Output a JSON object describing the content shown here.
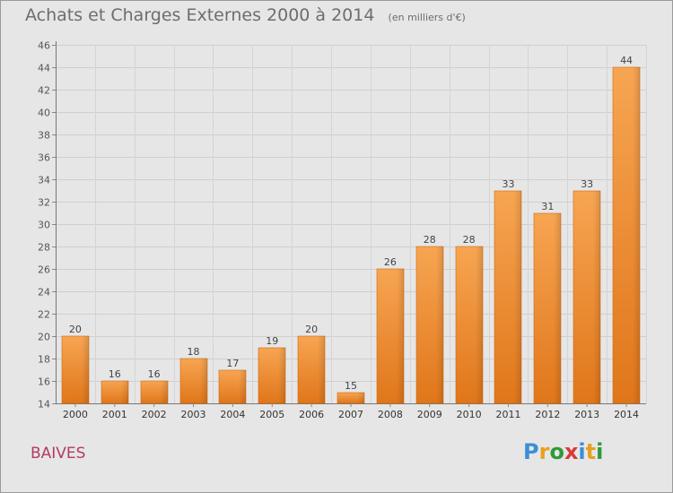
{
  "header": {
    "title": "Achats et Charges Externes 2000 à 2014",
    "subtitle": "(en milliers d'€)"
  },
  "footer": {
    "place": "BAIVES",
    "logo_letters": [
      "P",
      "r",
      "o",
      "x",
      "i",
      "t",
      "i"
    ],
    "logo_colors": [
      "#3a8fd8",
      "#e8a020",
      "#2e9a3a",
      "#d83a3a",
      "#3a8fd8",
      "#e8a020",
      "#2e9a3a"
    ]
  },
  "chart_data": {
    "type": "bar",
    "title": "Achats et Charges Externes 2000 à 2014",
    "subtitle": "(en milliers d'€)",
    "xlabel": "",
    "ylabel": "",
    "categories": [
      "2000",
      "2001",
      "2002",
      "2003",
      "2004",
      "2005",
      "2006",
      "2007",
      "2008",
      "2009",
      "2010",
      "2011",
      "2012",
      "2013",
      "2014"
    ],
    "values": [
      20,
      16,
      16,
      18,
      17,
      19,
      20,
      15,
      26,
      28,
      28,
      33,
      31,
      33,
      44
    ],
    "ylim": [
      14,
      46
    ],
    "yticks": [
      14,
      16,
      18,
      20,
      22,
      24,
      26,
      28,
      30,
      32,
      34,
      36,
      38,
      40,
      42,
      44,
      46
    ],
    "grid": true,
    "bar_color": "#f08a24",
    "data_labels": true
  }
}
